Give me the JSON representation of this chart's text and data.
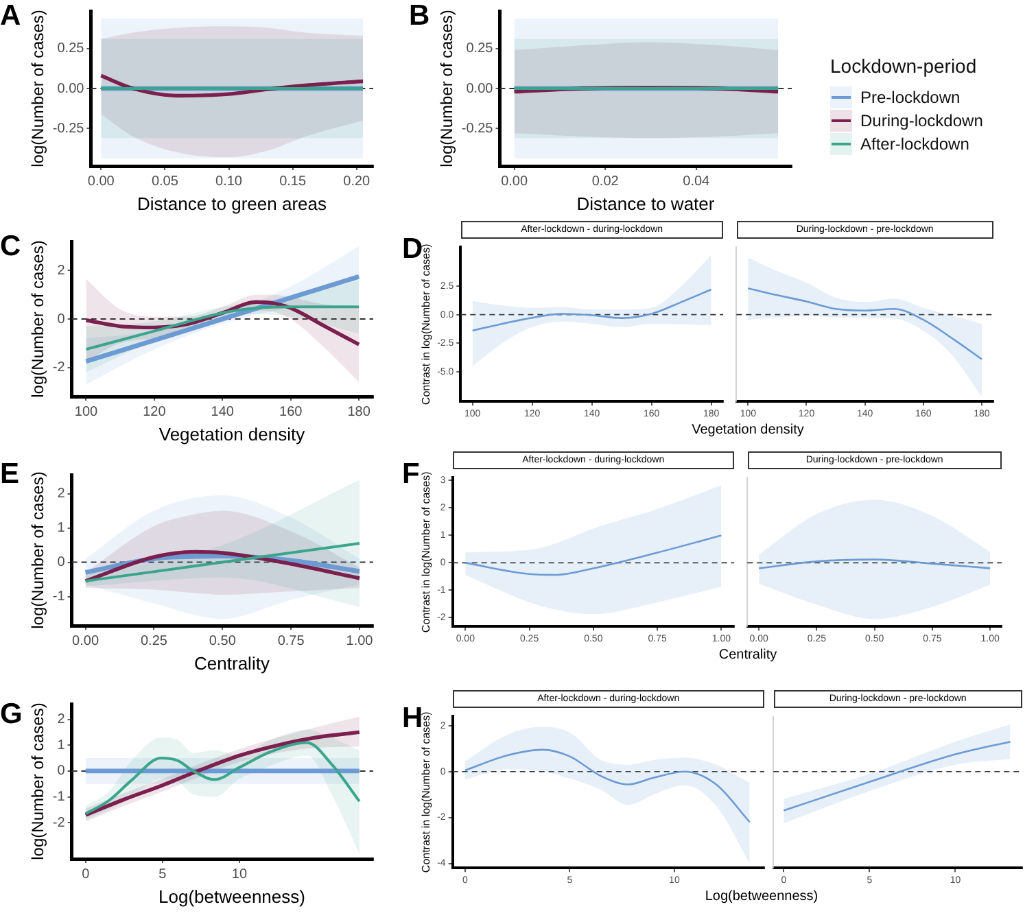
{
  "chart_data": [
    {
      "type": "line",
      "title": "A",
      "xlabel": "Distance to green areas",
      "ylabel": "log(Number of cases)",
      "xlim": [
        -0.008,
        0.213
      ],
      "ylim": [
        -0.485,
        0.485
      ],
      "xticks": [
        {
          "value": 0,
          "label": "0.00"
        },
        {
          "value": 0.05,
          "label": "0.05"
        },
        {
          "value": 0.1,
          "label": "0.10"
        },
        {
          "value": 0.15,
          "label": "0.15"
        },
        {
          "value": 0.2,
          "label": "0.20"
        }
      ],
      "yticks": [
        {
          "value": -0.25,
          "label": "-0.25"
        },
        {
          "value": 0,
          "label": "0.00"
        },
        {
          "value": 0.25,
          "label": "0.25"
        }
      ],
      "ref_lines": [
        {
          "axis": "y",
          "value": 0,
          "line_style": "dashed"
        }
      ],
      "grid": false,
      "series": [
        {
          "color": "#6b9bd2",
          "x": [
            0,
            0.205
          ],
          "values": [
            0,
            0
          ],
          "lower": [
            -0.437,
            -0.437
          ],
          "upper": [
            0.437,
            0.437
          ]
        },
        {
          "color": "#7a1f4e",
          "x": [
            0,
            0.025,
            0.06,
            0.1,
            0.13,
            0.16,
            0.205
          ],
          "values": [
            0.08,
            0,
            -0.045,
            -0.035,
            -0.005,
            0.02,
            0.045
          ],
          "lower": [
            -0.16,
            -0.3,
            -0.4,
            -0.43,
            -0.39,
            -0.3,
            -0.2
          ],
          "upper": [
            0.31,
            0.35,
            0.38,
            0.39,
            0.38,
            0.35,
            0.33
          ]
        },
        {
          "color": "#3aa58c",
          "x": [
            0,
            0.205
          ],
          "values": [
            0,
            0
          ],
          "lower": [
            -0.31,
            -0.31
          ],
          "upper": [
            0.31,
            0.31
          ]
        }
      ]
    },
    {
      "type": "line",
      "title": "B",
      "xlabel": "Distance to water",
      "ylabel": "log(Number of cases)",
      "xlim": [
        -0.0032,
        0.061
      ],
      "ylim": [
        -0.485,
        0.485
      ],
      "xticks": [
        {
          "value": 0,
          "label": "0.00"
        },
        {
          "value": 0.02,
          "label": "0.02"
        },
        {
          "value": 0.04,
          "label": "0.04"
        }
      ],
      "yticks": [
        {
          "value": -0.25,
          "label": "-0.25"
        },
        {
          "value": 0,
          "label": "0.00"
        },
        {
          "value": 0.25,
          "label": "0.25"
        }
      ],
      "ref_lines": [
        {
          "axis": "y",
          "value": 0,
          "line_style": "dashed"
        }
      ],
      "grid": false,
      "legend": "right",
      "legend_title": "Lockdown-period",
      "series": [
        {
          "name": "Pre-lockdown",
          "color": "#6b9bd2",
          "x": [
            0,
            0.058
          ],
          "values": [
            0,
            0
          ],
          "lower": [
            -0.437,
            -0.437
          ],
          "upper": [
            0.437,
            0.437
          ]
        },
        {
          "name": "During-lockdown",
          "color": "#7a1f4e",
          "x": [
            0,
            0.015,
            0.029,
            0.045,
            0.058
          ],
          "values": [
            -0.02,
            0,
            0.005,
            0,
            -0.02
          ],
          "lower": [
            -0.28,
            -0.3,
            -0.31,
            -0.3,
            -0.28
          ],
          "upper": [
            0.24,
            0.27,
            0.29,
            0.27,
            0.24
          ]
        },
        {
          "name": "After-lockdown",
          "color": "#3aa58c",
          "x": [
            0,
            0.058
          ],
          "values": [
            0,
            0
          ],
          "lower": [
            -0.31,
            -0.31
          ],
          "upper": [
            0.31,
            0.31
          ]
        }
      ]
    },
    {
      "type": "line",
      "title": "C",
      "xlabel": "Vegetation density",
      "ylabel": "log(Number of cases)",
      "xlim": [
        95.8,
        184.2
      ],
      "ylim": [
        -3.2,
        3.2
      ],
      "xticks": [
        100,
        120,
        140,
        160,
        180
      ],
      "yticks": [
        -2,
        0,
        2
      ],
      "ref_lines": [
        {
          "axis": "y",
          "value": 0,
          "line_style": "dashed"
        }
      ],
      "grid": false,
      "series": [
        {
          "color": "#6b9bd2",
          "x": [
            100,
            120,
            140,
            160,
            180
          ],
          "values": [
            -1.75,
            -0.88,
            0,
            0.88,
            1.75
          ],
          "lower": [
            -2.7,
            -1.25,
            -0.2,
            0.45,
            0.6
          ],
          "upper": [
            -0.8,
            -0.5,
            0.2,
            1.35,
            3.0
          ]
        },
        {
          "color": "#7a1f4e",
          "x": [
            100,
            110,
            120,
            130,
            140,
            150,
            155,
            160,
            170,
            180
          ],
          "values": [
            -0.05,
            -0.3,
            -0.35,
            -0.2,
            0.25,
            0.7,
            0.65,
            0.45,
            -0.3,
            -1.05
          ],
          "lower": [
            -1.75,
            -1.0,
            -0.8,
            -0.5,
            -0.1,
            0.35,
            0.3,
            0,
            -1.2,
            -2.6
          ],
          "upper": [
            1.65,
            0.4,
            0.1,
            0.1,
            0.5,
            1.0,
            1.0,
            0.9,
            0.6,
            0.5
          ]
        },
        {
          "color": "#3aa58c",
          "x": [
            100,
            120,
            140,
            150,
            160,
            180
          ],
          "values": [
            -1.25,
            -0.5,
            0.25,
            0.45,
            0.5,
            0.5
          ],
          "lower": [
            -2.2,
            -0.9,
            0,
            0.2,
            0.1,
            -0.6
          ],
          "upper": [
            -0.3,
            -0.1,
            0.5,
            0.7,
            0.9,
            1.6
          ]
        }
      ]
    },
    {
      "type": "line",
      "title": "D",
      "subtitle": "After-lockdown - during-lockdown",
      "xlabel": "Vegetation density",
      "ylabel": "Contrast in log(Number of cases)",
      "xlim": [
        96,
        184
      ],
      "ylim": [
        -7.6,
        5.9
      ],
      "xticks": [
        100,
        120,
        140,
        160,
        180
      ],
      "yticks": [
        {
          "value": -5,
          "label": "-5.0"
        },
        {
          "value": -2.5,
          "label": "-2.5"
        },
        {
          "value": 0,
          "label": "0.0"
        },
        {
          "value": 2.5,
          "label": "2.5"
        }
      ],
      "ref_lines": [
        {
          "axis": "y",
          "value": 0,
          "line_style": "dashed"
        }
      ],
      "grid": false,
      "series": [
        {
          "color": "#6b9bd2",
          "x": [
            100,
            110,
            120,
            130,
            140,
            150,
            160,
            170,
            180
          ],
          "values": [
            -1.4,
            -0.8,
            -0.28,
            0.07,
            -0.05,
            -0.3,
            0.07,
            1.1,
            2.2
          ],
          "lower": [
            -4.5,
            -2.5,
            -1.07,
            -0.6,
            -0.8,
            -1.1,
            -0.8,
            -0.85,
            -0.9
          ],
          "upper": [
            1.2,
            0.8,
            0.6,
            0.65,
            0.45,
            0.45,
            0.6,
            2.5,
            5.2
          ]
        }
      ]
    },
    {
      "type": "line",
      "subtitle": "During-lockdown - pre-lockdown",
      "xlim": [
        96,
        184
      ],
      "ylim": [
        -7.6,
        5.9
      ],
      "tick_labels": "x",
      "xticks": [
        100,
        120,
        140,
        160,
        180
      ],
      "ref_lines": [
        {
          "axis": "y",
          "value": 0,
          "line_style": "dashed"
        }
      ],
      "grid": false,
      "series": [
        {
          "color": "#6b9bd2",
          "x": [
            100,
            110,
            120,
            130,
            140,
            150,
            160,
            170,
            180
          ],
          "values": [
            2.3,
            1.7,
            1.15,
            0.5,
            0.35,
            0.5,
            -0.45,
            -2.1,
            -3.9
          ],
          "lower": [
            -0.45,
            -0.25,
            -0.1,
            -0.25,
            -0.3,
            -0.35,
            -1.4,
            -3.6,
            -7.2
          ],
          "upper": [
            5.0,
            3.8,
            2.8,
            1.5,
            1.1,
            1.4,
            0.6,
            -0.1,
            -0.8
          ]
        }
      ]
    },
    {
      "type": "line",
      "title": "E",
      "xlabel": "Centrality",
      "ylabel": "log(Number of cases)",
      "xlim": [
        -0.05,
        1.05
      ],
      "ylim": [
        -1.85,
        2.55
      ],
      "xticks": [
        {
          "value": 0,
          "label": "0.00"
        },
        {
          "value": 0.25,
          "label": "0.25"
        },
        {
          "value": 0.5,
          "label": "0.50"
        },
        {
          "value": 0.75,
          "label": "0.75"
        },
        {
          "value": 1,
          "label": "1.00"
        }
      ],
      "yticks": [
        -1,
        0,
        1,
        2
      ],
      "ref_lines": [
        {
          "axis": "y",
          "value": 0,
          "line_style": "dashed"
        }
      ],
      "grid": false,
      "series": [
        {
          "color": "#6b9bd2",
          "x": [
            0,
            0.25,
            0.5,
            0.75,
            1
          ],
          "values": [
            -0.3,
            0.1,
            0.18,
            0.05,
            -0.27
          ],
          "lower": [
            -0.65,
            -1.2,
            -1.65,
            -1.1,
            -0.65
          ],
          "upper": [
            0.1,
            1.5,
            1.95,
            1.3,
            0.1
          ]
        },
        {
          "color": "#7a1f4e",
          "x": [
            0,
            0.25,
            0.4,
            0.5,
            0.75,
            1
          ],
          "values": [
            -0.55,
            0.15,
            0.3,
            0.27,
            -0.05,
            -0.47
          ],
          "lower": [
            -0.75,
            -0.8,
            -0.9,
            -0.95,
            -0.85,
            -0.75
          ],
          "upper": [
            -0.3,
            1.05,
            1.4,
            1.5,
            0.9,
            -0.15
          ]
        },
        {
          "color": "#3aa58c",
          "x": [
            0,
            0.5,
            1
          ],
          "values": [
            -0.55,
            0,
            0.55
          ],
          "lower": [
            -0.7,
            -0.45,
            -1.3
          ],
          "upper": [
            -0.35,
            0.5,
            2.4
          ]
        }
      ]
    },
    {
      "type": "line",
      "title": "F",
      "subtitle": "After-lockdown - during-lockdown",
      "xlabel": "Centrality",
      "ylabel": "Contrast in log(Number of cases)",
      "xlim": [
        -0.05,
        1.05
      ],
      "ylim": [
        -2.32,
        3.1
      ],
      "xticks": [
        {
          "value": 0,
          "label": "0.00"
        },
        {
          "value": 0.25,
          "label": "0.25"
        },
        {
          "value": 0.5,
          "label": "0.50"
        },
        {
          "value": 0.75,
          "label": "0.75"
        },
        {
          "value": 1,
          "label": "1.00"
        }
      ],
      "yticks": [
        -2,
        -1,
        0,
        1,
        2,
        3
      ],
      "ref_lines": [
        {
          "axis": "y",
          "value": 0,
          "line_style": "dashed"
        }
      ],
      "grid": false,
      "series": [
        {
          "color": "#6b9bd2",
          "x": [
            0,
            0.25,
            0.35,
            0.5,
            0.75,
            1
          ],
          "values": [
            0,
            -0.41,
            -0.44,
            -0.2,
            0.37,
            1.0
          ],
          "lower": [
            -0.44,
            -1.44,
            -1.7,
            -1.87,
            -1.44,
            -0.87
          ],
          "upper": [
            0.38,
            0.47,
            0.7,
            1.25,
            1.96,
            2.83
          ]
        }
      ]
    },
    {
      "type": "line",
      "subtitle": "During-lockdown - pre-lockdown",
      "xlim": [
        -0.05,
        1.05
      ],
      "ylim": [
        -2.32,
        3.1
      ],
      "tick_labels": "x",
      "xticks": [
        {
          "value": 0,
          "label": "0.00"
        },
        {
          "value": 0.25,
          "label": "0.25"
        },
        {
          "value": 0.5,
          "label": "0.50"
        },
        {
          "value": 0.75,
          "label": "0.75"
        },
        {
          "value": 1,
          "label": "1.00"
        }
      ],
      "ref_lines": [
        {
          "axis": "y",
          "value": 0,
          "line_style": "dashed"
        }
      ],
      "grid": false,
      "series": [
        {
          "color": "#6b9bd2",
          "x": [
            0,
            0.25,
            0.5,
            0.75,
            1
          ],
          "values": [
            -0.2,
            0.05,
            0.12,
            -0.03,
            -0.2
          ],
          "lower": [
            -0.76,
            -1.53,
            -2.05,
            -1.6,
            -0.8
          ],
          "upper": [
            0.3,
            1.78,
            2.3,
            1.71,
            0.4
          ]
        }
      ]
    },
    {
      "type": "line",
      "title": "G",
      "xlabel": "Log(betweenness)",
      "ylabel": "log(Number of cases)",
      "xlim": [
        -0.9,
        18.7
      ],
      "ylim": [
        -3.4,
        2.6
      ],
      "xticks": [
        0,
        5,
        10
      ],
      "yticks": [
        -2,
        -1,
        0,
        1,
        2
      ],
      "ref_lines": [
        {
          "axis": "y",
          "value": 0,
          "line_style": "dashed"
        }
      ],
      "grid": false,
      "series": [
        {
          "color": "#6b9bd2",
          "x": [
            0,
            17.8
          ],
          "values": [
            0,
            0
          ],
          "lower": [
            -0.5,
            -0.5
          ],
          "upper": [
            0.5,
            0.5
          ]
        },
        {
          "color": "#7a1f4e",
          "x": [
            0,
            2.5,
            5,
            7.5,
            10,
            12.5,
            15,
            17.8
          ],
          "values": [
            -1.7,
            -1.1,
            -0.55,
            0.05,
            0.6,
            1.0,
            1.3,
            1.5
          ],
          "lower": [
            -1.95,
            -1.35,
            -0.8,
            -0.2,
            0.35,
            0.7,
            0.9,
            0.95
          ],
          "upper": [
            -1.45,
            -0.85,
            -0.3,
            0.3,
            0.85,
            1.3,
            1.7,
            2.1
          ]
        },
        {
          "color": "#3aa58c",
          "x": [
            0,
            1.5,
            3,
            4.9,
            6,
            7,
            8.4,
            10,
            12,
            14.4,
            16,
            17.8
          ],
          "values": [
            -1.65,
            -1.15,
            -0.35,
            0.5,
            0.4,
            0,
            -0.33,
            0.14,
            0.74,
            1.1,
            0.26,
            -1.17
          ],
          "lower": [
            -1.9,
            -1.5,
            -1.0,
            -0.3,
            -0.4,
            -0.9,
            -1.0,
            -0.3,
            0.2,
            0.6,
            -0.9,
            -3.2
          ],
          "upper": [
            -1.35,
            -0.8,
            0.4,
            1.3,
            1.2,
            0.7,
            0.8,
            0.6,
            1.2,
            1.6,
            1.3,
            0.8
          ]
        }
      ]
    },
    {
      "type": "line",
      "title": "H",
      "subtitle": "After-lockdown - during-lockdown",
      "xlabel": "Log(betweenness)",
      "ylabel": "Contrast in log(Number of cases)",
      "xlim": [
        -0.6,
        14.3
      ],
      "ylim": [
        -4.2,
        2.4
      ],
      "xticks": [
        0,
        5,
        10
      ],
      "yticks": [
        -4,
        -2,
        0,
        2
      ],
      "ref_lines": [
        {
          "axis": "y",
          "value": 0,
          "line_style": "dashed"
        }
      ],
      "grid": false,
      "series": [
        {
          "color": "#6b9bd2",
          "x": [
            0,
            2,
            3.7,
            5,
            6.5,
            7.8,
            9,
            10.5,
            12,
            13.6
          ],
          "values": [
            0.05,
            0.7,
            0.95,
            0.66,
            -0.2,
            -0.56,
            -0.27,
            0,
            -0.56,
            -2.2
          ],
          "lower": [
            -0.35,
            0.1,
            0,
            -0.3,
            -0.8,
            -1.45,
            -1.0,
            -0.6,
            -1.5,
            -4.0
          ],
          "upper": [
            0.45,
            1.6,
            1.95,
            1.7,
            0.5,
            0.3,
            0.5,
            0.6,
            0.3,
            -0.5
          ]
        }
      ]
    },
    {
      "type": "line",
      "subtitle": "During-lockdown - pre-lockdown",
      "xlim": [
        -0.6,
        13.9
      ],
      "ylim": [
        -4.2,
        2.4
      ],
      "tick_labels": "x",
      "xticks": [
        0,
        5,
        10
      ],
      "ref_lines": [
        {
          "axis": "y",
          "value": 0,
          "line_style": "dashed"
        }
      ],
      "grid": false,
      "series": [
        {
          "color": "#6b9bd2",
          "x": [
            0,
            5,
            10,
            13.2
          ],
          "values": [
            -1.7,
            -0.45,
            0.75,
            1.3
          ],
          "lower": [
            -2.25,
            -0.85,
            0.3,
            0.55
          ],
          "upper": [
            -1.2,
            -0.1,
            1.3,
            2.05
          ]
        }
      ]
    }
  ]
}
